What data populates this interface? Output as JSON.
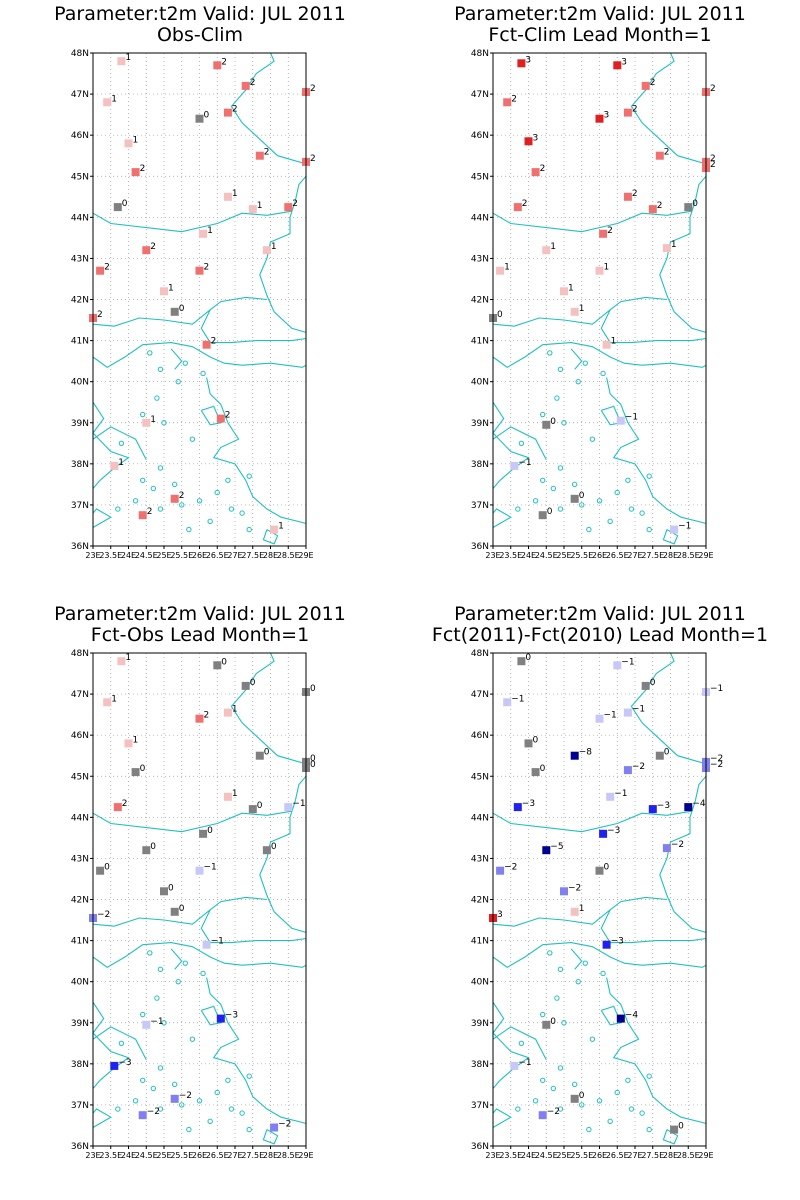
{
  "figure": {
    "x_ticks": [
      "23E",
      "23.5E",
      "24E",
      "24.5E",
      "25E",
      "25.5E",
      "26E",
      "26.5E",
      "27E",
      "27.5E",
      "28E",
      "28.5E",
      "29E"
    ],
    "y_ticks": [
      "36N",
      "37N",
      "38N",
      "39N",
      "40N",
      "41N",
      "42N",
      "43N",
      "44N",
      "45N",
      "46N",
      "47N",
      "48N"
    ],
    "colors": {
      "frame": "#000000",
      "grid": "#9a9a9a",
      "coast": "#20c0c0",
      "marker_zero": "#808080",
      "pos_1": "#f4c0c0",
      "pos_2": "#f07070",
      "pos_3": "#e02020",
      "neg_1": "#c8c8f8",
      "neg_2": "#8080f0",
      "neg_3": "#2020f0",
      "neg_4": "#000090"
    }
  },
  "panels": [
    {
      "title_line1": "Parameter:t2m Valid: JUL 2011",
      "title_line2": "Obs-Clim",
      "points": [
        {
          "lon": 23.8,
          "lat": 47.8,
          "v": 1
        },
        {
          "lon": 26.5,
          "lat": 47.7,
          "v": 2
        },
        {
          "lon": 27.3,
          "lat": 47.2,
          "v": 2
        },
        {
          "lon": 29.0,
          "lat": 47.05,
          "v": 2
        },
        {
          "lon": 23.4,
          "lat": 46.8,
          "v": 1
        },
        {
          "lon": 26.0,
          "lat": 46.4,
          "v": 0
        },
        {
          "lon": 26.8,
          "lat": 46.55,
          "v": 2
        },
        {
          "lon": 24.0,
          "lat": 45.8,
          "v": 1
        },
        {
          "lon": 27.7,
          "lat": 45.5,
          "v": 2
        },
        {
          "lon": 29.0,
          "lat": 45.35,
          "v": 2
        },
        {
          "lon": 24.2,
          "lat": 45.1,
          "v": 2
        },
        {
          "lon": 26.8,
          "lat": 44.5,
          "v": 1
        },
        {
          "lon": 23.7,
          "lat": 44.25,
          "v": 0
        },
        {
          "lon": 27.5,
          "lat": 44.2,
          "v": 1
        },
        {
          "lon": 28.5,
          "lat": 44.25,
          "v": 2
        },
        {
          "lon": 26.1,
          "lat": 43.6,
          "v": 1
        },
        {
          "lon": 24.5,
          "lat": 43.2,
          "v": 2
        },
        {
          "lon": 27.9,
          "lat": 43.2,
          "v": 1
        },
        {
          "lon": 23.2,
          "lat": 42.7,
          "v": 2
        },
        {
          "lon": 26.0,
          "lat": 42.7,
          "v": 2
        },
        {
          "lon": 25.0,
          "lat": 42.2,
          "v": 1
        },
        {
          "lon": 25.3,
          "lat": 41.7,
          "v": 0
        },
        {
          "lon": 23.0,
          "lat": 41.55,
          "v": 2
        },
        {
          "lon": 26.2,
          "lat": 40.9,
          "v": 2
        },
        {
          "lon": 24.5,
          "lat": 39.0,
          "v": 1
        },
        {
          "lon": 26.6,
          "lat": 39.1,
          "v": 2
        },
        {
          "lon": 23.6,
          "lat": 37.95,
          "v": 1
        },
        {
          "lon": 25.3,
          "lat": 37.15,
          "v": 2
        },
        {
          "lon": 24.4,
          "lat": 36.75,
          "v": 2
        },
        {
          "lon": 28.1,
          "lat": 36.4,
          "v": 1
        }
      ]
    },
    {
      "title_line1": "Parameter:t2m Valid: JUL 2011",
      "title_line2": "Fct-Clim Lead Month=1",
      "points": [
        {
          "lon": 23.8,
          "lat": 47.75,
          "v": 3
        },
        {
          "lon": 26.5,
          "lat": 47.7,
          "v": 3
        },
        {
          "lon": 27.3,
          "lat": 47.2,
          "v": 2
        },
        {
          "lon": 29.0,
          "lat": 47.05,
          "v": 2
        },
        {
          "lon": 23.4,
          "lat": 46.8,
          "v": 2
        },
        {
          "lon": 26.0,
          "lat": 46.4,
          "v": 3
        },
        {
          "lon": 26.8,
          "lat": 46.55,
          "v": 2
        },
        {
          "lon": 24.0,
          "lat": 45.85,
          "v": 3
        },
        {
          "lon": 27.7,
          "lat": 45.5,
          "v": 2
        },
        {
          "lon": 29.0,
          "lat": 45.35,
          "v": 2
        },
        {
          "lon": 29.0,
          "lat": 45.2,
          "v": 2
        },
        {
          "lon": 24.2,
          "lat": 45.1,
          "v": 2
        },
        {
          "lon": 26.8,
          "lat": 44.5,
          "v": 2
        },
        {
          "lon": 23.7,
          "lat": 44.25,
          "v": 2
        },
        {
          "lon": 27.5,
          "lat": 44.2,
          "v": 2
        },
        {
          "lon": 28.5,
          "lat": 44.25,
          "v": 0
        },
        {
          "lon": 26.1,
          "lat": 43.6,
          "v": 2
        },
        {
          "lon": 24.5,
          "lat": 43.2,
          "v": 1
        },
        {
          "lon": 27.9,
          "lat": 43.25,
          "v": 1
        },
        {
          "lon": 23.2,
          "lat": 42.7,
          "v": 1
        },
        {
          "lon": 26.0,
          "lat": 42.7,
          "v": 1
        },
        {
          "lon": 25.0,
          "lat": 42.2,
          "v": 1
        },
        {
          "lon": 25.3,
          "lat": 41.7,
          "v": 1
        },
        {
          "lon": 23.0,
          "lat": 41.55,
          "v": 0
        },
        {
          "lon": 26.2,
          "lat": 40.9,
          "v": 1
        },
        {
          "lon": 24.5,
          "lat": 38.95,
          "v": 0
        },
        {
          "lon": 26.6,
          "lat": 39.05,
          "v": -1
        },
        {
          "lon": 23.6,
          "lat": 37.95,
          "v": -1
        },
        {
          "lon": 25.3,
          "lat": 37.15,
          "v": 0
        },
        {
          "lon": 24.4,
          "lat": 36.75,
          "v": 0
        },
        {
          "lon": 28.1,
          "lat": 36.4,
          "v": -1
        }
      ]
    },
    {
      "title_line1": "Parameter:t2m Valid: JUL 2011",
      "title_line2": "Fct-Obs Lead Month=1",
      "points": [
        {
          "lon": 23.8,
          "lat": 47.8,
          "v": 1
        },
        {
          "lon": 26.5,
          "lat": 47.7,
          "v": 0
        },
        {
          "lon": 27.3,
          "lat": 47.2,
          "v": 0
        },
        {
          "lon": 29.0,
          "lat": 47.05,
          "v": 0
        },
        {
          "lon": 23.4,
          "lat": 46.8,
          "v": 1
        },
        {
          "lon": 26.0,
          "lat": 46.4,
          "v": 2
        },
        {
          "lon": 26.8,
          "lat": 46.55,
          "v": 1
        },
        {
          "lon": 24.0,
          "lat": 45.8,
          "v": 1
        },
        {
          "lon": 27.7,
          "lat": 45.5,
          "v": 0
        },
        {
          "lon": 29.0,
          "lat": 45.35,
          "v": 0
        },
        {
          "lon": 29.0,
          "lat": 45.2,
          "v": 0
        },
        {
          "lon": 24.2,
          "lat": 45.1,
          "v": 0
        },
        {
          "lon": 26.8,
          "lat": 44.5,
          "v": 1
        },
        {
          "lon": 23.7,
          "lat": 44.25,
          "v": 2
        },
        {
          "lon": 27.5,
          "lat": 44.2,
          "v": 0
        },
        {
          "lon": 28.5,
          "lat": 44.25,
          "v": -1
        },
        {
          "lon": 26.1,
          "lat": 43.6,
          "v": 0
        },
        {
          "lon": 24.5,
          "lat": 43.2,
          "v": 0
        },
        {
          "lon": 27.9,
          "lat": 43.2,
          "v": 0
        },
        {
          "lon": 23.2,
          "lat": 42.7,
          "v": 0
        },
        {
          "lon": 26.0,
          "lat": 42.7,
          "v": -1
        },
        {
          "lon": 25.0,
          "lat": 42.2,
          "v": 0
        },
        {
          "lon": 25.3,
          "lat": 41.7,
          "v": 0
        },
        {
          "lon": 23.0,
          "lat": 41.55,
          "v": -2
        },
        {
          "lon": 26.2,
          "lat": 40.9,
          "v": -1
        },
        {
          "lon": 24.5,
          "lat": 38.95,
          "v": -1
        },
        {
          "lon": 26.6,
          "lat": 39.1,
          "v": -3
        },
        {
          "lon": 23.6,
          "lat": 37.95,
          "v": -3
        },
        {
          "lon": 25.3,
          "lat": 37.15,
          "v": -2
        },
        {
          "lon": 24.4,
          "lat": 36.75,
          "v": -2
        },
        {
          "lon": 28.1,
          "lat": 36.45,
          "v": -2
        }
      ]
    },
    {
      "title_line1": "Parameter:t2m Valid: JUL 2011",
      "title_line2": "Fct(2011)-Fct(2010) Lead Month=1",
      "points": [
        {
          "lon": 23.8,
          "lat": 47.8,
          "v": 0
        },
        {
          "lon": 26.5,
          "lat": 47.7,
          "v": -1
        },
        {
          "lon": 27.3,
          "lat": 47.2,
          "v": 0
        },
        {
          "lon": 29.0,
          "lat": 47.05,
          "v": -1
        },
        {
          "lon": 23.4,
          "lat": 46.8,
          "v": -1
        },
        {
          "lon": 26.0,
          "lat": 46.4,
          "v": -1
        },
        {
          "lon": 26.8,
          "lat": 46.55,
          "v": -1
        },
        {
          "lon": 24.0,
          "lat": 45.8,
          "v": 0
        },
        {
          "lon": 25.3,
          "lat": 45.5,
          "v": -8
        },
        {
          "lon": 27.7,
          "lat": 45.5,
          "v": 0
        },
        {
          "lon": 29.0,
          "lat": 45.35,
          "v": -2
        },
        {
          "lon": 29.0,
          "lat": 45.2,
          "v": -2
        },
        {
          "lon": 26.8,
          "lat": 45.15,
          "v": -2
        },
        {
          "lon": 24.2,
          "lat": 45.1,
          "v": 0
        },
        {
          "lon": 26.3,
          "lat": 44.5,
          "v": -1
        },
        {
          "lon": 23.7,
          "lat": 44.25,
          "v": -3
        },
        {
          "lon": 27.5,
          "lat": 44.2,
          "v": -3
        },
        {
          "lon": 28.5,
          "lat": 44.25,
          "v": -4
        },
        {
          "lon": 26.1,
          "lat": 43.6,
          "v": -3
        },
        {
          "lon": 24.5,
          "lat": 43.2,
          "v": -5
        },
        {
          "lon": 27.9,
          "lat": 43.25,
          "v": -2
        },
        {
          "lon": 23.2,
          "lat": 42.7,
          "v": -2
        },
        {
          "lon": 26.0,
          "lat": 42.7,
          "v": 0
        },
        {
          "lon": 25.0,
          "lat": 42.2,
          "v": -2
        },
        {
          "lon": 25.3,
          "lat": 41.7,
          "v": 1
        },
        {
          "lon": 23.0,
          "lat": 41.55,
          "v": 3
        },
        {
          "lon": 26.2,
          "lat": 40.9,
          "v": -3
        },
        {
          "lon": 24.5,
          "lat": 38.95,
          "v": 0
        },
        {
          "lon": 26.6,
          "lat": 39.1,
          "v": -4
        },
        {
          "lon": 23.6,
          "lat": 37.95,
          "v": -1
        },
        {
          "lon": 25.3,
          "lat": 37.15,
          "v": 0
        },
        {
          "lon": 24.4,
          "lat": 36.75,
          "v": -2
        },
        {
          "lon": 28.1,
          "lat": 36.4,
          "v": 0
        }
      ]
    }
  ],
  "chart_data": [
    {
      "type": "scatter",
      "title": "Parameter:t2m Valid: JUL 2011 Obs-Clim",
      "xlim": [
        23,
        29
      ],
      "ylim": [
        36,
        48
      ],
      "grid": true
    },
    {
      "type": "scatter",
      "title": "Parameter:t2m Valid: JUL 2011 Fct-Clim Lead Month=1",
      "xlim": [
        23,
        29
      ],
      "ylim": [
        36,
        48
      ],
      "grid": true
    },
    {
      "type": "scatter",
      "title": "Parameter:t2m Valid: JUL 2011 Fct-Obs Lead Month=1",
      "xlim": [
        23,
        29
      ],
      "ylim": [
        36,
        48
      ],
      "grid": true
    },
    {
      "type": "scatter",
      "title": "Parameter:t2m Valid: JUL 2011 Fct(2011)-Fct(2010) Lead Month=1",
      "xlim": [
        23,
        29
      ],
      "ylim": [
        36,
        48
      ],
      "grid": true
    }
  ]
}
